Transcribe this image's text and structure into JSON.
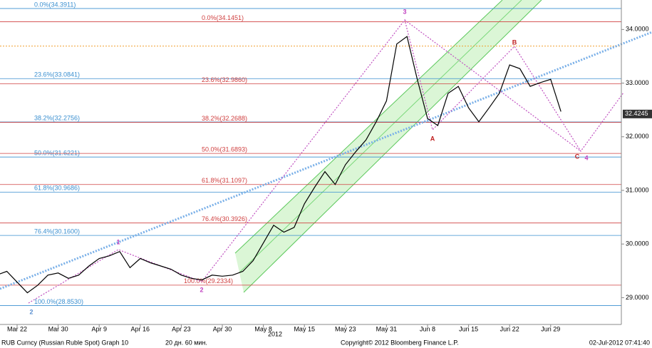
{
  "chart_data": {
    "type": "line",
    "categories": [
      null,
      null,
      "Mar 22",
      null,
      null,
      null,
      "Mar 30",
      null,
      null,
      null,
      "Apr 9",
      null,
      null,
      null,
      "Apr 16",
      null,
      null,
      null,
      "Apr 23",
      null,
      null,
      null,
      "Apr 30",
      null,
      null,
      null,
      "May 8",
      null,
      null,
      null,
      "May 15",
      null,
      null,
      null,
      "May 23",
      null,
      null,
      null,
      "May 31",
      null,
      null,
      null,
      "Jun 8",
      null,
      null,
      null,
      "Jun 15",
      null,
      null,
      null,
      "Jun 22",
      null,
      null,
      null,
      "Jun 29",
      null
    ],
    "series": [
      {
        "name": "RUB Curncy (Russian Ruble Spot) Graph 10",
        "color": "#000000",
        "values": [
          29.42,
          29.49,
          29.29,
          29.09,
          29.23,
          29.42,
          29.46,
          29.36,
          29.42,
          29.59,
          29.73,
          29.78,
          29.86,
          29.56,
          29.73,
          29.65,
          29.59,
          29.53,
          29.42,
          29.36,
          29.33,
          29.42,
          29.4,
          29.42,
          29.49,
          29.69,
          30.02,
          30.35,
          30.22,
          30.31,
          30.75,
          31.06,
          31.35,
          31.11,
          31.48,
          31.72,
          31.94,
          32.28,
          32.67,
          33.73,
          33.87,
          33.07,
          32.34,
          32.21,
          32.81,
          32.94,
          32.54,
          32.28,
          32.54,
          32.81,
          33.34,
          33.27,
          32.94,
          33.01,
          33.07,
          32.47
        ]
      }
    ],
    "ylim": [
      28.5,
      34.55
    ],
    "yticks": [
      {
        "value": 29,
        "label": "29.0000"
      },
      {
        "value": 30,
        "label": "30.0000"
      },
      {
        "value": 31,
        "label": "31.0000"
      },
      {
        "value": 32,
        "label": "32.0000"
      },
      {
        "value": 33,
        "label": "33.0000"
      },
      {
        "value": 34,
        "label": "34.0000"
      }
    ],
    "last_value": 32.4245,
    "year_label": "2012",
    "levels": [
      {
        "label": "0.0%(34.3911)",
        "value": 34.3911,
        "color": "#3a8fd0",
        "side": "left"
      },
      {
        "label": "23.6%(33.0841)",
        "value": 33.0841,
        "color": "#3a8fd0",
        "side": "left"
      },
      {
        "label": "38.2%(32.2756)",
        "value": 32.2756,
        "color": "#3a8fd0",
        "side": "left"
      },
      {
        "label": "50.0%(31.6221)",
        "value": 31.6221,
        "color": "#3a8fd0",
        "side": "left"
      },
      {
        "label": "61.8%(30.9686)",
        "value": 30.9686,
        "color": "#3a8fd0",
        "side": "left"
      },
      {
        "label": "76.4%(30.1600)",
        "value": 30.16,
        "color": "#3a8fd0",
        "side": "left"
      },
      {
        "label": "100.0%(28.8530)",
        "value": 28.853,
        "color": "#3a8fd0",
        "side": "left"
      },
      {
        "label": "0.0%(34.1451)",
        "value": 34.1451,
        "color": "#d04040",
        "side": "middle"
      },
      {
        "label": "23.6%(32.9860)",
        "value": 32.986,
        "color": "#d04040",
        "side": "middle"
      },
      {
        "label": "38.2%(32.2688)",
        "value": 32.2688,
        "color": "#d04040",
        "side": "middle"
      },
      {
        "label": "50.0%(31.6893)",
        "value": 31.6893,
        "color": "#d04040",
        "side": "middle"
      },
      {
        "label": "61.8%(31.1097)",
        "value": 31.1097,
        "color": "#d04040",
        "side": "middle"
      },
      {
        "label": "76.4%(30.3926)",
        "value": 30.3926,
        "color": "#d04040",
        "side": "middle"
      },
      {
        "label": "100.0%(29.2334)",
        "value": 29.2334,
        "color": "#d04040",
        "side": "bottom"
      }
    ],
    "reference_line": {
      "value": 33.69,
      "color": "#f0a030"
    },
    "annotations": [
      {
        "text": "1",
        "color": "#c040c0"
      },
      {
        "text": "2",
        "color": "#5a8fd0"
      },
      {
        "text": "2",
        "color": "#c040c0"
      },
      {
        "text": "3",
        "color": "#c040c0"
      },
      {
        "text": "A",
        "color": "#c02020"
      },
      {
        "text": "B",
        "color": "#c02020"
      },
      {
        "text": "C",
        "color": "#c02020"
      },
      {
        "text": "4",
        "color": "#c040c0"
      }
    ],
    "footer": [
      "RUB Curncy (Russian Ruble Spot) Graph 10",
      "20 дн. 60 мин.",
      "Copyright© 2012 Bloomberg Finance L.P.",
      "02-Jul-2012 07:41:40"
    ]
  }
}
